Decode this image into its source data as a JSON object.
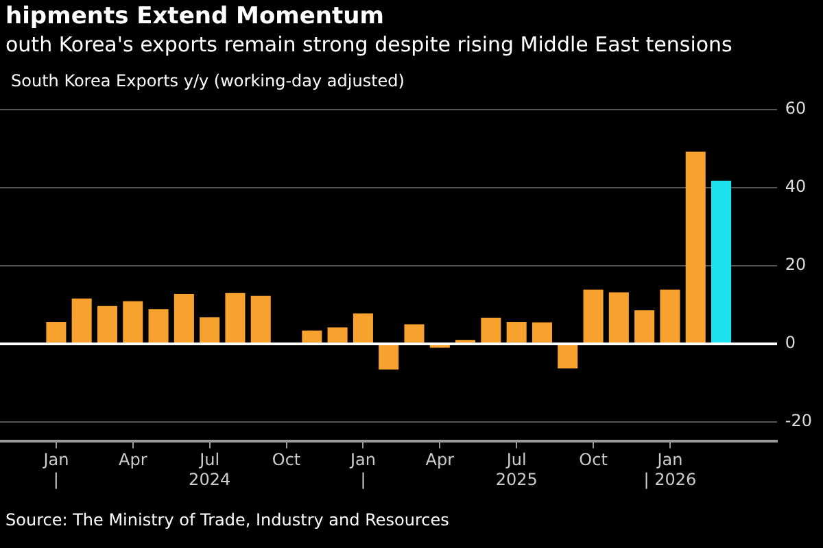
{
  "chart_data": {
    "type": "bar",
    "title": "hipments Extend Momentum",
    "subtitle": "outh Korea's exports remain strong despite rising Middle East tensions",
    "ylabel": "South Korea Exports y/y (working-day adjusted)",
    "x": [
      "2024-01",
      "2024-02",
      "2024-03",
      "2024-04",
      "2024-05",
      "2024-06",
      "2024-07",
      "2024-08",
      "2024-09",
      "2024-10",
      "2024-11",
      "2024-12",
      "2025-01",
      "2025-02",
      "2025-03",
      "2025-04",
      "2025-05",
      "2025-06",
      "2025-07",
      "2025-08",
      "2025-09",
      "2025-10",
      "2025-11",
      "2025-12",
      "2026-01",
      "2026-02",
      "2026-03"
    ],
    "values": [
      5.6,
      11.6,
      9.7,
      10.9,
      8.9,
      12.8,
      6.8,
      13.0,
      12.3,
      0,
      3.4,
      4.2,
      7.8,
      -6.6,
      5.0,
      -1.0,
      1.0,
      6.7,
      5.6,
      5.5,
      -6.3,
      13.9,
      13.2,
      8.6,
      13.9,
      49.2,
      41.8
    ],
    "colors": [
      "#f7a12f",
      "#f7a12f",
      "#f7a12f",
      "#f7a12f",
      "#f7a12f",
      "#f7a12f",
      "#f7a12f",
      "#f7a12f",
      "#f7a12f",
      "#f7a12f",
      "#f7a12f",
      "#f7a12f",
      "#f7a12f",
      "#f7a12f",
      "#f7a12f",
      "#f7a12f",
      "#f7a12f",
      "#f7a12f",
      "#f7a12f",
      "#f7a12f",
      "#f7a12f",
      "#f7a12f",
      "#f7a12f",
      "#f7a12f",
      "#f7a12f",
      "#f7a12f",
      "#1de2f0"
    ],
    "xlim": [
      "2023-12-16",
      "2026-03-16"
    ],
    "xticks": [
      {
        "value": "2024-01",
        "label": "Jan\n|"
      },
      {
        "value": "2024-04",
        "label": "Apr"
      },
      {
        "value": "2024-07",
        "label": "Jul\n2024"
      },
      {
        "value": "2024-10",
        "label": "Oct"
      },
      {
        "value": "2025-01",
        "label": "Jan\n|"
      },
      {
        "value": "2025-04",
        "label": "Apr"
      },
      {
        "value": "2025-07",
        "label": "Jul\n2025"
      },
      {
        "value": "2025-10",
        "label": "Oct"
      },
      {
        "value": "2026-01",
        "label": "Jan\n| 2026"
      }
    ],
    "ylim": [
      -25,
      60
    ],
    "yticks": [
      -20,
      0,
      20,
      40,
      60
    ],
    "grid": "y",
    "legend": false,
    "annotations": [
      "Source: The Ministry of Trade, Industry and Resources"
    ]
  }
}
